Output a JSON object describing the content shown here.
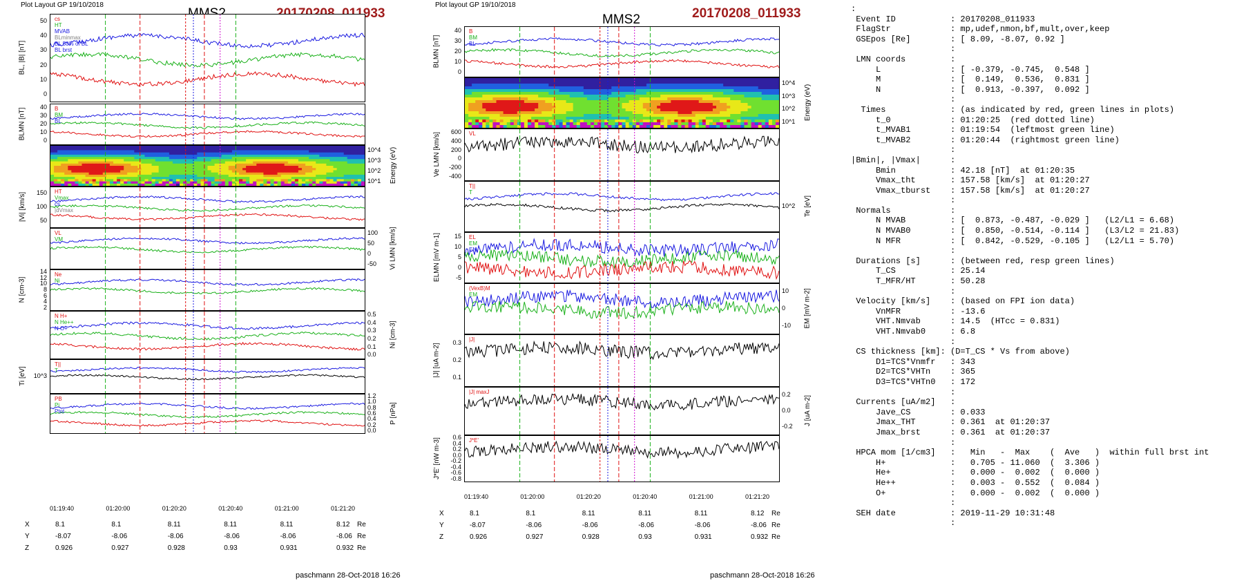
{
  "left_plot": {
    "header_left": "Plot Layout GP 19/10/2018",
    "title": "MMS2",
    "event": "20170208_011933",
    "footer": "paschmann 28-Oct-2018 16:26",
    "x_ticks": [
      "01:19:40",
      "01:20:00",
      "01:20:20",
      "01:20:40",
      "01:21:00",
      "01:21:20"
    ],
    "coords": {
      "rows": [
        {
          "label": "X",
          "values": [
            "8.1",
            "8.1",
            "8.11",
            "8.11",
            "8.11",
            "8.12"
          ],
          "unit": "Re"
        },
        {
          "label": "Y",
          "values": [
            "-8.07",
            "-8.06",
            "-8.06",
            "-8.06",
            "-8.06",
            "-8.06"
          ],
          "unit": "Re"
        },
        {
          "label": "Z",
          "values": [
            "0.926",
            "0.927",
            "0.928",
            "0.93",
            "0.931",
            "0.932"
          ],
          "unit": "Re"
        }
      ]
    },
    "panels": [
      {
        "ylabel": "BL, |B| [nT]",
        "side": "left",
        "yticks": [
          "0",
          "10",
          "20",
          "30",
          "40",
          "50"
        ],
        "legend": [
          "cs",
          "HT",
          "MVAB",
          "BLminmax",
          "BL 50% of BL",
          "BL brst"
        ]
      },
      {
        "ylabel": "BLMN [nT]",
        "side": "left",
        "yticks": [
          "0",
          "10",
          "20",
          "30",
          "40"
        ],
        "legend": [
          "B",
          "BM",
          "BL"
        ]
      },
      {
        "ylabel": "Energy (eV)",
        "side": "right",
        "yticks": [
          "10^1",
          "10^2",
          "10^3",
          "10^4"
        ],
        "legend": []
      },
      {
        "ylabel": "|Vi| [km/s]",
        "side": "left",
        "yticks": [
          "50",
          "100",
          "150"
        ],
        "legend": [
          "HT",
          "Vmax",
          "cs",
          "|dVmax"
        ]
      },
      {
        "ylabel": "Vi LMN [km/s]",
        "side": "right",
        "yticks": [
          "-50",
          "0",
          "50",
          "100"
        ],
        "legend": [
          "VL",
          "VM"
        ]
      },
      {
        "ylabel": "N [cm-3]",
        "side": "left",
        "yticks": [
          "2",
          "4",
          "6",
          "8",
          "10",
          "12",
          "14"
        ],
        "legend": [
          "Ne",
          "Ni"
        ]
      },
      {
        "ylabel": "Ni [cm-3]",
        "side": "right",
        "yticks": [
          "0.0",
          "0.1",
          "0.2",
          "0.3",
          "0.4",
          "0.5"
        ],
        "legend": [
          "N H+",
          "N He++",
          "N O+"
        ]
      },
      {
        "ylabel": "Ti [eV]",
        "side": "left",
        "yticks": [
          "10^3"
        ],
        "legend": [
          "T||",
          "T"
        ]
      },
      {
        "ylabel": "P [nPa]",
        "side": "right",
        "yticks": [
          "0.0",
          "0.2",
          "0.4",
          "0.6",
          "0.8",
          "1.0",
          "1.2"
        ],
        "legend": [
          "PB",
          "Pi",
          "Ptot"
        ]
      }
    ]
  },
  "mid_plot": {
    "header_left": "Plot layout GP 19/10/2018",
    "title": "MMS2",
    "event": "20170208_011933",
    "footer": "paschmann 28-Oct-2018 16:26",
    "x_ticks": [
      "01:19:40",
      "01:20:00",
      "01:20:20",
      "01:20:40",
      "01:21:00",
      "01:21:20"
    ],
    "coords": {
      "rows": [
        {
          "label": "X",
          "values": [
            "8.1",
            "8.1",
            "8.11",
            "8.11",
            "8.11",
            "8.12"
          ],
          "unit": "Re"
        },
        {
          "label": "Y",
          "values": [
            "-8.07",
            "-8.06",
            "-8.06",
            "-8.06",
            "-8.06",
            "-8.06"
          ],
          "unit": "Re"
        },
        {
          "label": "Z",
          "values": [
            "0.926",
            "0.927",
            "0.928",
            "0.93",
            "0.931",
            "0.932"
          ],
          "unit": "Re"
        }
      ]
    },
    "panels": [
      {
        "ylabel": "BLMN [nT]",
        "side": "left",
        "yticks": [
          "0",
          "10",
          "20",
          "30",
          "40"
        ],
        "legend": [
          "B",
          "BM",
          "BL"
        ]
      },
      {
        "ylabel": "Energy (eV)",
        "side": "right",
        "yticks": [
          "10^1",
          "10^2",
          "10^3",
          "10^4"
        ],
        "legend": []
      },
      {
        "ylabel": "Ve LMN [km/s]",
        "side": "left",
        "yticks": [
          "-400",
          "-200",
          "0",
          "200",
          "400",
          "600"
        ],
        "legend": [
          "VL"
        ]
      },
      {
        "ylabel": "Te [eV]",
        "side": "right",
        "yticks": [
          "10^2"
        ],
        "legend": [
          "T||",
          "T"
        ]
      },
      {
        "ylabel": "ELMN [mV m-1]",
        "side": "left",
        "yticks": [
          "-5",
          "0",
          "5",
          "10",
          "15"
        ],
        "legend": [
          "EL",
          "EM",
          "EN"
        ]
      },
      {
        "ylabel": "EM [mV m-2]",
        "side": "right",
        "yticks": [
          "-10",
          "0",
          "10"
        ],
        "legend": [
          "(VexB)M",
          "EM"
        ]
      },
      {
        "ylabel": "|J| [uA m-2]",
        "side": "left",
        "yticks": [
          "0.1",
          "0.2",
          "0.3"
        ],
        "legend": [
          "|J|"
        ]
      },
      {
        "ylabel": "J [uA m-2]",
        "side": "right",
        "yticks": [
          "-0.2",
          "0.0",
          "0.2"
        ],
        "legend": [
          "|J| maxJ"
        ]
      },
      {
        "ylabel": "J*E' [nW m-3]",
        "side": "left",
        "yticks": [
          "-0.8",
          "-0.6",
          "-0.4",
          "-0.2",
          "0.0",
          "0.2",
          "0.4",
          "0.6"
        ],
        "legend": [
          "J*E'"
        ]
      }
    ]
  },
  "info_lines": [
    ":",
    " Event ID           : 20170208_011933",
    " FlagStr            : mp,udef,nmon,bf,mult,over,keep",
    " GSEpos [Re]        : [ 8.09, -8.07, 0.92 ]",
    "                    :",
    " LMN coords         :",
    "     L              : [ -0.379, -0.745,  0.548 ]",
    "     M              : [  0.149,  0.536,  0.831 ]",
    "     N              : [  0.913, -0.397,  0.092 ]",
    "                    :",
    "  Times             : (as indicated by red, green lines in plots)",
    "     t_0            : 01:20:25  (red dotted line)",
    "     t_MVAB1        : 01:19:54  (leftmost green line)",
    "     t_MVAB2        : 01:20:44  (rightmost green line)",
    "                    :",
    "|Bmin|, |Vmax|      :",
    "     Bmin           : 42.18 [nT]  at 01:20:35",
    "     Vmax_tht       : 157.58 [km/s]  at 01:20:27",
    "     Vmax_tburst    : 157.58 [km/s]  at 01:20:27",
    "                    :",
    " Normals            :",
    "     N MVAB         : [  0.873, -0.487, -0.029 ]   (L2/L1 = 6.68)",
    "     N MVAB0        : [  0.850, -0.514, -0.114 ]   (L3/L2 = 21.83)",
    "     N MFR          : [  0.842, -0.529, -0.105 ]   (L2/L1 = 5.70)",
    "                    :",
    " Durations [s]      : (between red, resp green lines)",
    "     T_CS           : 25.14",
    "     T_MFR/HT       : 50.28",
    "                    :",
    " Velocity [km/s]    : (based on FPI ion data)",
    "     VnMFR          : -13.6",
    "     VHT.Nmvab      : 14.5  (HTcc = 0.831)",
    "     VHT.Nmvab0     : 6.8",
    "                    :",
    " CS thickness [km]: (D=T_CS * Vs from above)",
    "     D1=TCS*Vnmfr   : 343",
    "     D2=TCS*VHTn    : 365",
    "     D3=TCS*VHTn0   : 172",
    "                    :",
    " Currents [uA/m2]   :",
    "     Jave_CS        : 0.033",
    "     Jmax_THT       : 0.361  at 01:20:37",
    "     Jmax_brst      : 0.361  at 01:20:37",
    "                    :",
    " HPCA mom [1/cm3]   :   Min   -  Max    (  Ave   )  within full brst int",
    "     H+             :   0.705 - 11.060  (  3.306 )",
    "     He+            :   0.000 -  0.002  (  0.000 )",
    "     He++           :   0.003 -  0.552  (  0.084 )",
    "     O+             :   0.000 -  0.002  (  0.000 )",
    "                    :",
    " SEH date           : 2019-11-29 10:31:48",
    "                    :"
  ],
  "colors": {
    "red": "#e01010",
    "green": "#18b018",
    "blue": "#1818e0",
    "magenta": "#d010d0",
    "gray": "#808080",
    "event": "#a01c1c"
  }
}
